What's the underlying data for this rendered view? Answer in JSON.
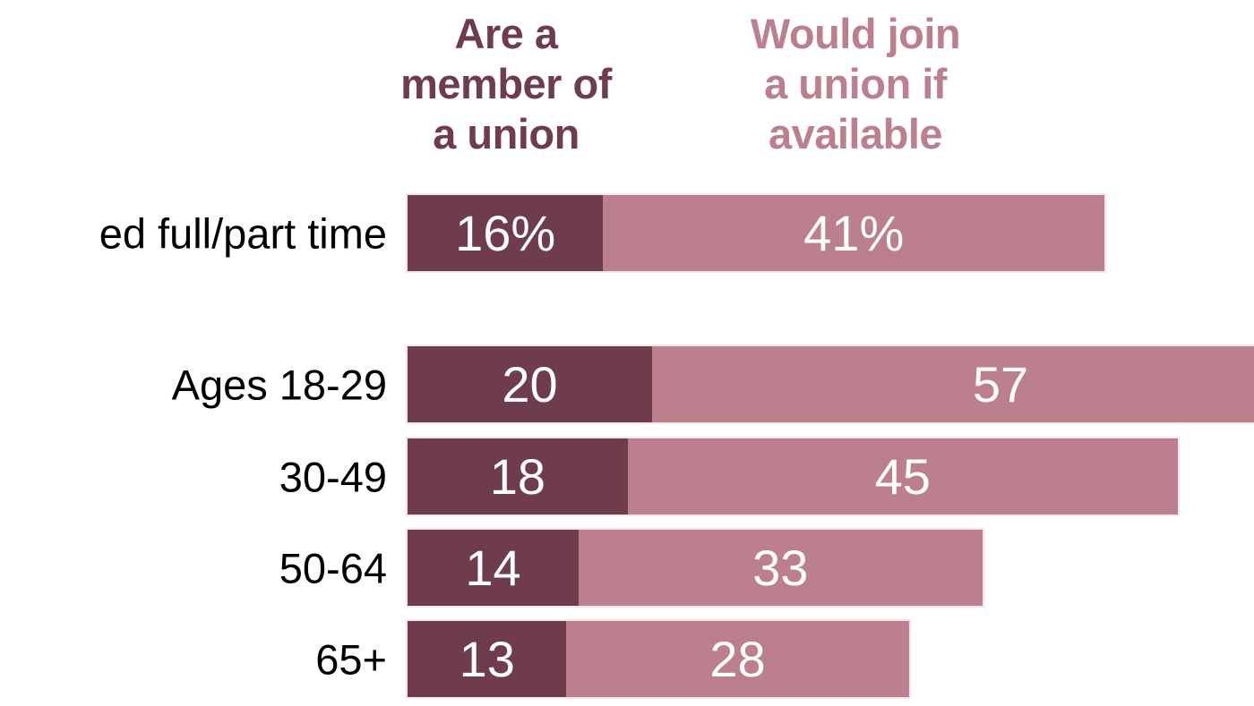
{
  "chart_data": {
    "type": "bar",
    "orientation": "horizontal",
    "stacked": true,
    "background": "#ffffff",
    "title": "",
    "categories": [
      "ed full/part time",
      "Ages 18-29",
      "30-49",
      "50-64",
      "65+"
    ],
    "series": [
      {
        "name": "Are a member of a union",
        "header_label": "Are a\nmember of\na union",
        "color": "#6f3c4b",
        "values": [
          16,
          20,
          18,
          14,
          13
        ],
        "data_labels": [
          "16%",
          "20",
          "18",
          "14",
          "13"
        ]
      },
      {
        "name": "Would join a union if available",
        "header_label": "Would join\na union if\navailable",
        "color": "#bc7f8e",
        "values": [
          41,
          57,
          45,
          33,
          28
        ],
        "data_labels": [
          "41%",
          "57",
          "45",
          "33",
          "28"
        ]
      }
    ],
    "value_label_color": "#ffffff",
    "category_label_color": "#000000",
    "axis": {
      "visible": false,
      "unit": "percent"
    },
    "legend_position": "top-column-headers",
    "layout_hints": {
      "first_category_label_clipped_left": true,
      "ages_18_29_second_segment_clipped_right": true
    }
  }
}
